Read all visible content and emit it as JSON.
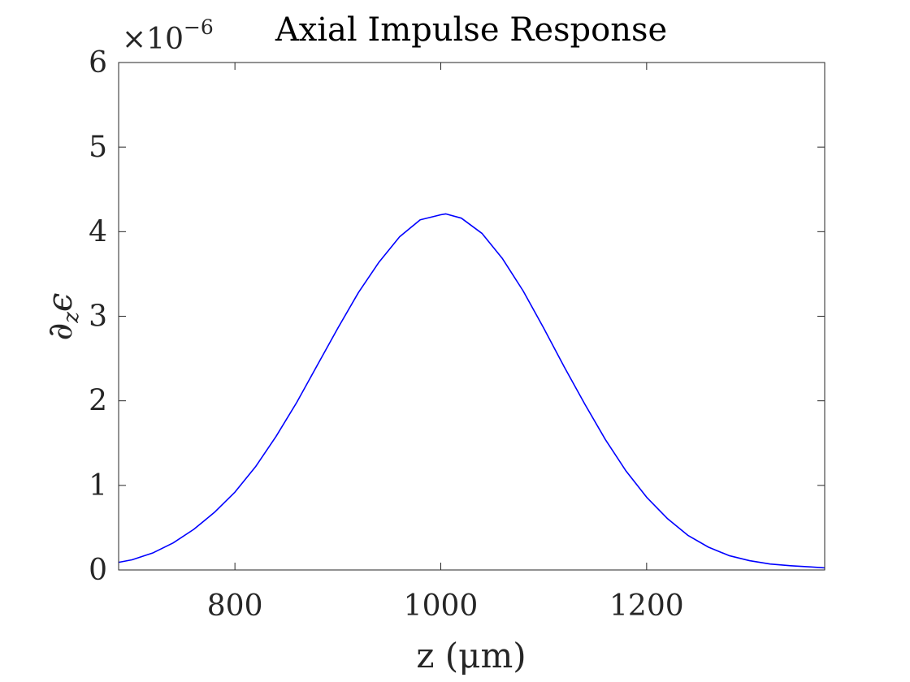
{
  "chart_data": {
    "type": "line",
    "title": "Axial Impulse Response",
    "xlabel": "z (μm)",
    "ylabel": "∂zϵ",
    "ylabel_main": "∂",
    "ylabel_sub": "z",
    "ylabel_tail": "ϵ",
    "y_multiplier": "×10",
    "y_multiplier_exp": "−6",
    "xlim": [
      687,
      1373
    ],
    "ylim": [
      0,
      6
    ],
    "x_ticks": [
      800,
      1000,
      1200
    ],
    "x_tick_labels": [
      "800",
      "1000",
      "1200"
    ],
    "y_ticks": [
      0,
      1,
      2,
      3,
      4,
      5,
      6
    ],
    "y_tick_labels": [
      "0",
      "1",
      "2",
      "3",
      "4",
      "5",
      "6"
    ],
    "grid": false,
    "series": [
      {
        "color": "#0000ff",
        "x": [
          687,
          700,
          720,
          740,
          760,
          780,
          800,
          820,
          840,
          860,
          880,
          900,
          920,
          940,
          960,
          980,
          1000,
          1005,
          1020,
          1040,
          1060,
          1080,
          1100,
          1120,
          1140,
          1160,
          1180,
          1200,
          1220,
          1240,
          1260,
          1280,
          1300,
          1320,
          1340,
          1360,
          1373
        ],
        "y": [
          0.09,
          0.12,
          0.2,
          0.32,
          0.48,
          0.68,
          0.92,
          1.22,
          1.58,
          1.98,
          2.42,
          2.86,
          3.28,
          3.64,
          3.94,
          4.14,
          4.2,
          4.21,
          4.16,
          3.98,
          3.68,
          3.3,
          2.86,
          2.4,
          1.96,
          1.54,
          1.17,
          0.86,
          0.61,
          0.41,
          0.27,
          0.17,
          0.11,
          0.07,
          0.05,
          0.035,
          0.025
        ]
      }
    ]
  }
}
